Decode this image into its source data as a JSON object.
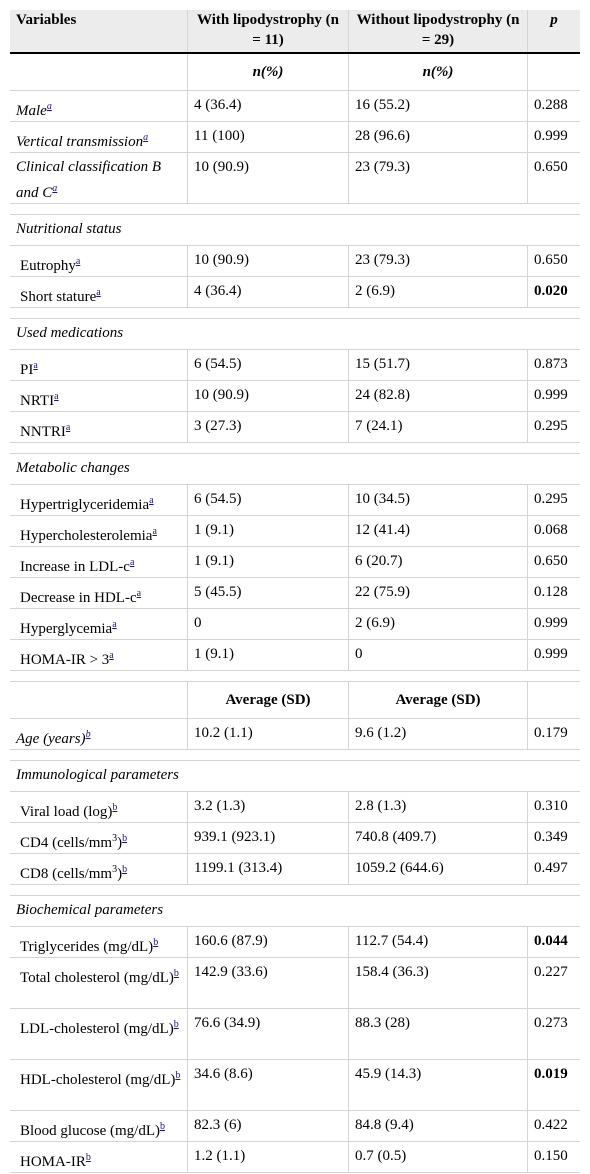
{
  "header": {
    "variables": "Variables",
    "with_lipo": "With lipodystrophy (n = 11)",
    "without_lipo": "Without lipodystrophy (n = 29)",
    "p": "p"
  },
  "subheaders": {
    "n_pct_with": "n(%)",
    "n_pct_without": "n(%)",
    "avg_with": "Average (SD)",
    "avg_without": "Average (SD)"
  },
  "footnote_marks": {
    "a": "a",
    "b": "b"
  },
  "units": {
    "cubed": "3"
  },
  "sections": {
    "nutritional": "Nutritional status",
    "medications": "Used medications",
    "metabolic": "Metabolic changes",
    "immunological": "Immunological parameters",
    "biochemical": "Biochemical parameters"
  },
  "rows": {
    "male": {
      "label": "Male",
      "with": "4 (36.4)",
      "without": "16 (55.2)",
      "p": "0.288"
    },
    "vertical": {
      "label": "Vertical transmission",
      "with": "11 (100)",
      "without": "28 (96.6)",
      "p": "0.999"
    },
    "clinical": {
      "label": "Clinical classification B and C",
      "with": "10 (90.9)",
      "without": "23 (79.3)",
      "p": "0.650"
    },
    "eutrophy": {
      "label": "Eutrophy",
      "with": "10 (90.9)",
      "without": "23 (79.3)",
      "p": "0.650"
    },
    "short_stature": {
      "label": "Short stature",
      "with": "4 (36.4)",
      "without": "2 (6.9)",
      "p": "0.020"
    },
    "pi": {
      "label": "PI",
      "with": "6 (54.5)",
      "without": "15 (51.7)",
      "p": "0.873"
    },
    "nrti": {
      "label": "NRTI",
      "with": "10 (90.9)",
      "without": "24 (82.8)",
      "p": "0.999"
    },
    "nntri": {
      "label": "NNTRI",
      "with": "3 (27.3)",
      "without": "7 (24.1)",
      "p": "0.295"
    },
    "hypertrig": {
      "label": "Hypertriglyceridemia",
      "with": "6 (54.5)",
      "without": "10 (34.5)",
      "p": "0.295"
    },
    "hyperchol": {
      "label": "Hypercholesterolemia",
      "with": "1 (9.1)",
      "without": "12 (41.4)",
      "p": "0.068"
    },
    "ldl_inc": {
      "label": "Increase in LDL-c",
      "with": "1 (9.1)",
      "without": "6 (20.7)",
      "p": "0.650"
    },
    "hdl_dec": {
      "label": "Decrease in HDL-c",
      "with": "5 (45.5)",
      "without": "22 (75.9)",
      "p": "0.128"
    },
    "hyperglyc": {
      "label": "Hyperglycemia",
      "with": "0",
      "without": "2 (6.9)",
      "p": "0.999"
    },
    "homa_gt": {
      "label": "HOMA-IR > 3",
      "with": "1 (9.1)",
      "without": "0",
      "p": "0.999"
    },
    "age": {
      "label": "Age (years)",
      "with": "10.2 (1.1)",
      "without": "9.6 (1.2)",
      "p": "0.179"
    },
    "viral": {
      "label": "Viral load (log)",
      "with": "3.2 (1.3)",
      "without": "2.8 (1.3)",
      "p": "0.310"
    },
    "cd4": {
      "label": "CD4 (cells/mm",
      "label_end": ")",
      "with": "939.1 (923.1)",
      "without": "740.8 (409.7)",
      "p": "0.349"
    },
    "cd8": {
      "label": "CD8 (cells/mm",
      "label_end": ")",
      "with": "1199.1 (313.4)",
      "without": "1059.2 (644.6)",
      "p": "0.497"
    },
    "trig": {
      "label": "Triglycerides (mg/dL)",
      "with": "160.6 (87.9)",
      "without": "112.7 (54.4)",
      "p": "0.044"
    },
    "totchol": {
      "label": "Total cholesterol (mg/dL)",
      "with": "142.9 (33.6)",
      "without": "158.4 (36.3)",
      "p": "0.227"
    },
    "ldl": {
      "label": "LDL-cholesterol (mg/dL)",
      "with": "76.6 (34.9)",
      "without": "88.3 (28)",
      "p": "0.273"
    },
    "hdl": {
      "label": "HDL-cholesterol (mg/dL)",
      "with": "34.6 (8.6)",
      "without": "45.9 (14.3)",
      "p": "0.019"
    },
    "glucose": {
      "label": "Blood glucose (mg/dL)",
      "with": "82.3 (6)",
      "without": "84.8 (9.4)",
      "p": "0.422"
    },
    "homa": {
      "label": "HOMA-IR",
      "with": "1.2 (1.1)",
      "without": "0.7 (0.5)",
      "p": "0.150"
    }
  }
}
